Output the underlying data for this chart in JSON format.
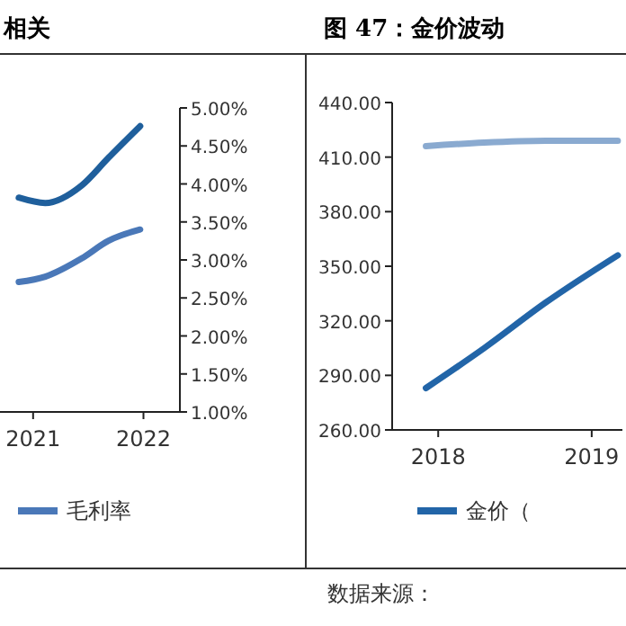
{
  "chart_data": [
    {
      "type": "line",
      "title": "相关",
      "x": [
        2020.87,
        2021.11,
        2021.44,
        2021.68,
        2021.97
      ],
      "xlim": [
        2020.7,
        2022.33
      ],
      "xticks": [
        2021,
        2022
      ],
      "series": [
        {
          "color": "#1f5f9c",
          "axis": "y2",
          "values": [
            3.82,
            3.75,
            3.98,
            4.34,
            4.76
          ]
        },
        {
          "name": "毛利率",
          "color": "#4a78b8",
          "axis": "y2",
          "values": [
            2.71,
            2.78,
            3.02,
            3.25,
            3.4
          ]
        }
      ],
      "y2lim": [
        1,
        5
      ],
      "y2ticks": [
        {
          "value": 1,
          "label": "1.00%"
        },
        {
          "value": 1.5,
          "label": "1.50%"
        },
        {
          "value": 2,
          "label": "2.00%"
        },
        {
          "value": 2.5,
          "label": "2.50%"
        },
        {
          "value": 3,
          "label": "3.00%"
        },
        {
          "value": 3.5,
          "label": "3.50%"
        },
        {
          "value": 4,
          "label": "4.00%"
        },
        {
          "value": 4.5,
          "label": "4.50%"
        },
        {
          "value": 5,
          "label": "5.00%"
        }
      ],
      "legend": "bottom"
    },
    {
      "type": "line",
      "title": "图 47：金价波动",
      "x": [
        2017.92,
        2018.3,
        2018.7,
        2019.17
      ],
      "xlim": [
        2017.7,
        2019.2
      ],
      "xticks": [
        2018,
        2019
      ],
      "series": [
        {
          "color": "#8aaad0",
          "values": [
            416,
            418,
            419,
            419
          ]
        },
        {
          "name": "金价（",
          "color": "#2265a8",
          "values": [
            283,
            305,
            330,
            356
          ]
        }
      ],
      "ylim": [
        260,
        440
      ],
      "yticks": [
        {
          "value": 260,
          "label": "260.00"
        },
        {
          "value": 290,
          "label": "290.00"
        },
        {
          "value": 320,
          "label": "320.00"
        },
        {
          "value": 350,
          "label": "350.00"
        },
        {
          "value": 380,
          "label": "380.00"
        },
        {
          "value": 410,
          "label": "410.00"
        },
        {
          "value": 440,
          "label": "440.00"
        }
      ],
      "legend": "bottom",
      "annotations": [
        "数据来源："
      ]
    }
  ]
}
